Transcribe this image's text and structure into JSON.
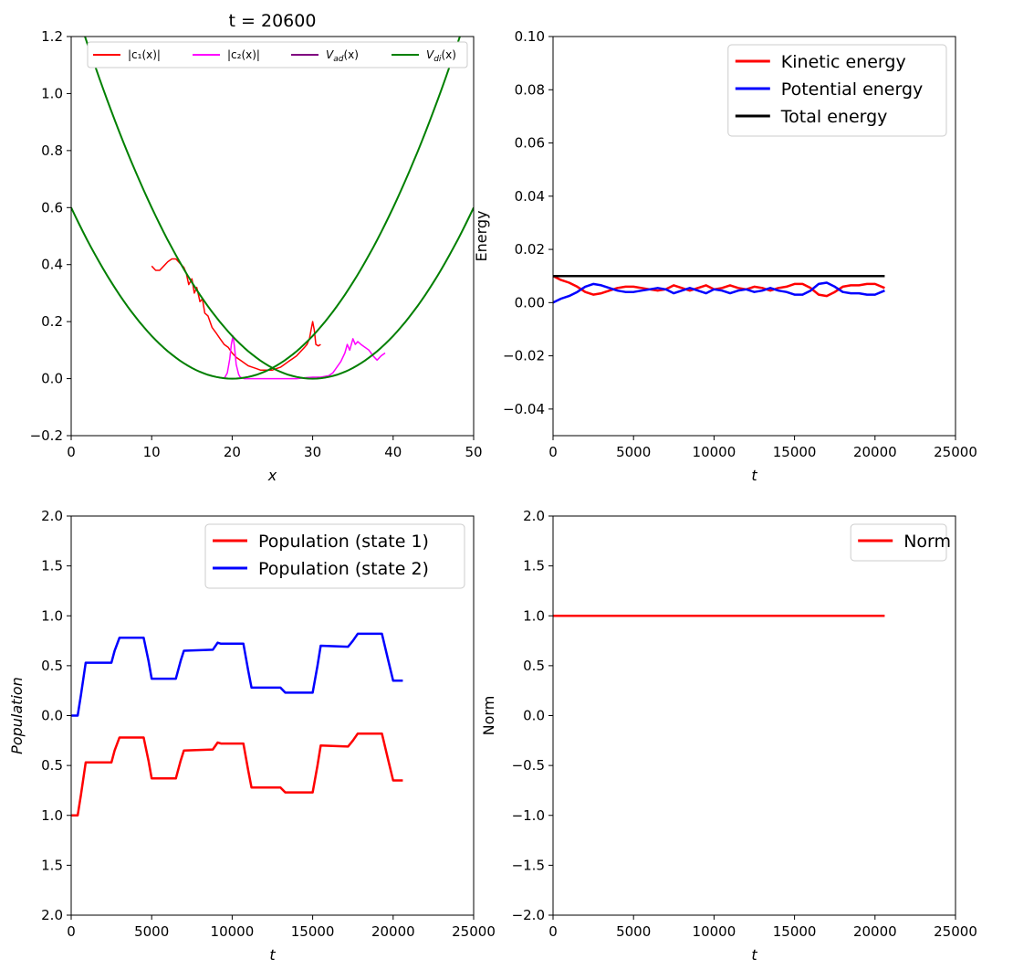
{
  "chart_data": [
    {
      "type": "line",
      "title": "t = 20600",
      "xlabel": "x",
      "ylabel": "",
      "xlim": [
        0,
        50
      ],
      "ylim": [
        -0.2,
        1.2
      ],
      "xticks": [
        "0",
        "10",
        "20",
        "30",
        "40",
        "50"
      ],
      "xtick_values": [
        0,
        10,
        20,
        30,
        40,
        50
      ],
      "yticks": [
        "−0.2",
        "0.0",
        "0.2",
        "0.4",
        "0.6",
        "0.8",
        "1.0",
        "1.2"
      ],
      "ytick_values": [
        -0.2,
        0.0,
        0.2,
        0.4,
        0.6,
        0.8,
        1.0,
        1.2
      ],
      "legend_position": "top",
      "series": [
        {
          "name": "|c₁(x)|",
          "color": "#ff0000",
          "width": 1.5,
          "x": [
            10,
            10.5,
            11,
            11.5,
            12,
            12.5,
            13,
            13.5,
            14,
            14.3,
            14.6,
            15,
            15.3,
            15.6,
            16,
            16.3,
            16.6,
            17,
            17.5,
            18,
            18.5,
            19,
            19.5,
            20,
            20.5,
            21,
            21.5,
            22,
            22.5,
            23,
            23.5,
            24,
            24.5,
            25,
            25.5,
            26,
            26.5,
            27,
            27.5,
            28,
            28.5,
            29,
            29.3,
            29.6,
            29.8,
            30,
            30.2,
            30.4,
            30.7,
            31
          ],
          "y": [
            0.395,
            0.38,
            0.38,
            0.395,
            0.41,
            0.42,
            0.42,
            0.405,
            0.39,
            0.37,
            0.33,
            0.35,
            0.3,
            0.32,
            0.27,
            0.28,
            0.23,
            0.22,
            0.18,
            0.16,
            0.14,
            0.12,
            0.11,
            0.09,
            0.075,
            0.065,
            0.055,
            0.045,
            0.04,
            0.035,
            0.03,
            0.03,
            0.03,
            0.03,
            0.035,
            0.04,
            0.05,
            0.06,
            0.07,
            0.08,
            0.095,
            0.11,
            0.12,
            0.14,
            0.17,
            0.2,
            0.17,
            0.12,
            0.115,
            0.12
          ]
        },
        {
          "name": "|c₂(x)|",
          "color": "#ff00ff",
          "width": 1.5,
          "x": [
            19,
            19.4,
            19.7,
            19.9,
            20.1,
            20.3,
            20.5,
            20.8,
            21,
            21.5,
            22,
            25,
            28,
            29,
            30,
            31,
            32,
            32.5,
            33,
            33.5,
            34,
            34.3,
            34.6,
            35,
            35.3,
            35.6,
            36,
            36.5,
            37,
            37.5,
            38,
            38.5,
            39
          ],
          "y": [
            0.0,
            0.02,
            0.07,
            0.12,
            0.15,
            0.11,
            0.05,
            0.015,
            0.005,
            0.0,
            0.0,
            0.0,
            0.0,
            0.003,
            0.005,
            0.005,
            0.01,
            0.02,
            0.04,
            0.06,
            0.09,
            0.12,
            0.1,
            0.14,
            0.12,
            0.13,
            0.12,
            0.11,
            0.1,
            0.08,
            0.065,
            0.08,
            0.09
          ]
        },
        {
          "name": "V_ad(x)",
          "color": "#800080",
          "width": 1.5,
          "function": "min(0.0015*(x-20)^2, 0.0015*(x-30)^2)"
        },
        {
          "name": "V_di(x)",
          "color": "#008000",
          "width": 2,
          "function": "0.0015*(x-20)^2 and 0.0015*(x-30)^2"
        }
      ]
    },
    {
      "type": "line",
      "title": "",
      "xlabel": "t",
      "ylabel": "Energy",
      "xlim": [
        0,
        25000
      ],
      "ylim": [
        -0.05,
        0.1
      ],
      "xticks": [
        "0",
        "5000",
        "10000",
        "15000",
        "20000",
        "25000"
      ],
      "xtick_values": [
        0,
        5000,
        10000,
        15000,
        20000,
        25000
      ],
      "yticks": [
        "−0.04",
        "−0.02",
        "0.00",
        "0.02",
        "0.04",
        "0.06",
        "0.08",
        "0.10"
      ],
      "ytick_values": [
        -0.04,
        -0.02,
        0.0,
        0.02,
        0.04,
        0.06,
        0.08,
        0.1
      ],
      "legend_position": "upper right",
      "series": [
        {
          "name": "Kinetic energy",
          "color": "#ff0000",
          "width": 2.5,
          "x": [
            0,
            500,
            1000,
            1500,
            2000,
            2500,
            3000,
            3500,
            4000,
            4500,
            5000,
            5500,
            6000,
            6500,
            7000,
            7500,
            8000,
            8500,
            9000,
            9500,
            10000,
            10500,
            11000,
            11500,
            12000,
            12500,
            13000,
            13500,
            14000,
            14500,
            15000,
            15500,
            16000,
            16500,
            17000,
            17500,
            18000,
            18500,
            19000,
            19500,
            20000,
            20600
          ],
          "y": [
            0.01,
            0.0085,
            0.0075,
            0.006,
            0.004,
            0.003,
            0.0035,
            0.0045,
            0.0055,
            0.006,
            0.006,
            0.0055,
            0.005,
            0.0045,
            0.005,
            0.0065,
            0.0055,
            0.0045,
            0.0055,
            0.0065,
            0.005,
            0.0055,
            0.0065,
            0.0055,
            0.005,
            0.006,
            0.0055,
            0.0045,
            0.0055,
            0.006,
            0.007,
            0.007,
            0.0055,
            0.003,
            0.0025,
            0.004,
            0.006,
            0.0065,
            0.0065,
            0.007,
            0.007,
            0.0055
          ]
        },
        {
          "name": "Potential energy",
          "color": "#0000ff",
          "width": 2.5,
          "x": [
            0,
            500,
            1000,
            1500,
            2000,
            2500,
            3000,
            3500,
            4000,
            4500,
            5000,
            5500,
            6000,
            6500,
            7000,
            7500,
            8000,
            8500,
            9000,
            9500,
            10000,
            10500,
            11000,
            11500,
            12000,
            12500,
            13000,
            13500,
            14000,
            14500,
            15000,
            15500,
            16000,
            16500,
            17000,
            17500,
            18000,
            18500,
            19000,
            19500,
            20000,
            20600
          ],
          "y": [
            0.0,
            0.0015,
            0.0025,
            0.004,
            0.006,
            0.007,
            0.0065,
            0.0055,
            0.0045,
            0.004,
            0.004,
            0.0045,
            0.005,
            0.0055,
            0.005,
            0.0035,
            0.0045,
            0.0055,
            0.0045,
            0.0035,
            0.005,
            0.0045,
            0.0035,
            0.0045,
            0.005,
            0.004,
            0.0045,
            0.0055,
            0.0045,
            0.004,
            0.003,
            0.003,
            0.0045,
            0.007,
            0.0075,
            0.006,
            0.004,
            0.0035,
            0.0035,
            0.003,
            0.003,
            0.0045
          ]
        },
        {
          "name": "Total energy",
          "color": "#000000",
          "width": 2.5,
          "x": [
            0,
            5000,
            10000,
            15000,
            20600
          ],
          "y": [
            0.01,
            0.01,
            0.01,
            0.01,
            0.01
          ]
        }
      ]
    },
    {
      "type": "line",
      "title": "",
      "xlabel": "t",
      "ylabel": "Population",
      "xlim": [
        0,
        25000
      ],
      "ylim": [
        2.0,
        -2.0
      ],
      "xticks": [
        "0",
        "5000",
        "10000",
        "15000",
        "20000",
        "25000"
      ],
      "xtick_values": [
        0,
        5000,
        10000,
        15000,
        20000,
        25000
      ],
      "yticks": [
        "2.0",
        "1.5",
        "1.0",
        "0.5",
        "0.0",
        "0.5",
        "1.0",
        "1.5",
        "2.0"
      ],
      "ytick_values": [
        2.0,
        1.5,
        1.0,
        0.5,
        0.0,
        -0.5,
        -1.0,
        -1.5,
        -2.0
      ],
      "legend_position": "upper right",
      "series": [
        {
          "name": "Population (state 1)",
          "color": "#ff0000",
          "width": 2.5,
          "x": [
            0,
            400,
            600,
            900,
            2500,
            2700,
            3000,
            4500,
            4800,
            5000,
            6500,
            6800,
            7000,
            8800,
            9100,
            9300,
            10700,
            11000,
            11200,
            13000,
            13300,
            15000,
            15300,
            15500,
            17200,
            17500,
            17800,
            19300,
            19700,
            20000,
            20600
          ],
          "y": [
            1.0,
            1.0,
            0.8,
            0.47,
            0.47,
            0.35,
            0.22,
            0.22,
            0.45,
            0.63,
            0.63,
            0.45,
            0.35,
            0.34,
            0.27,
            0.28,
            0.28,
            0.55,
            0.72,
            0.72,
            0.77,
            0.77,
            0.5,
            0.3,
            0.31,
            0.25,
            0.18,
            0.18,
            0.45,
            0.65,
            0.65
          ]
        },
        {
          "name": "Population (state 2)",
          "color": "#0000ff",
          "width": 2.5,
          "x": [
            0,
            400,
            600,
            900,
            2500,
            2700,
            3000,
            4500,
            4800,
            5000,
            6500,
            6800,
            7000,
            8800,
            9100,
            9300,
            10700,
            11000,
            11200,
            13000,
            13300,
            15000,
            15300,
            15500,
            17200,
            17500,
            17800,
            19300,
            19700,
            20000,
            20600
          ],
          "y": [
            0.0,
            0.0,
            -0.2,
            -0.53,
            -0.53,
            -0.65,
            -0.78,
            -0.78,
            -0.55,
            -0.37,
            -0.37,
            -0.55,
            -0.65,
            -0.66,
            -0.73,
            -0.72,
            -0.72,
            -0.45,
            -0.28,
            -0.28,
            -0.23,
            -0.23,
            -0.5,
            -0.7,
            -0.69,
            -0.75,
            -0.82,
            -0.82,
            -0.55,
            -0.35,
            -0.35
          ]
        }
      ]
    },
    {
      "type": "line",
      "title": "",
      "xlabel": "t",
      "ylabel": "Norm",
      "xlim": [
        0,
        25000
      ],
      "ylim": [
        -2.0,
        2.0
      ],
      "xticks": [
        "0",
        "5000",
        "10000",
        "15000",
        "20000",
        "25000"
      ],
      "xtick_values": [
        0,
        5000,
        10000,
        15000,
        20000,
        25000
      ],
      "yticks": [
        "−2.0",
        "−1.5",
        "−1.0",
        "−0.5",
        "0.0",
        "0.5",
        "1.0",
        "1.5",
        "2.0"
      ],
      "ytick_values": [
        -2.0,
        -1.5,
        -1.0,
        -0.5,
        0.0,
        0.5,
        1.0,
        1.5,
        2.0
      ],
      "legend_position": "upper right",
      "series": [
        {
          "name": "Norm",
          "color": "#ff0000",
          "width": 2.5,
          "x": [
            0,
            20600
          ],
          "y": [
            1.0,
            1.0
          ]
        }
      ]
    }
  ]
}
